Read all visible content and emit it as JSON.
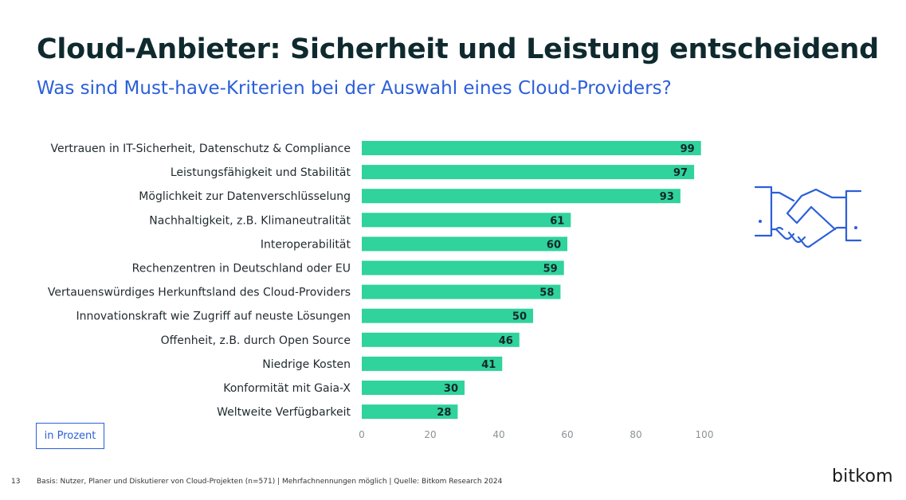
{
  "title": "Cloud-Anbieter: Sicherheit und Leistung entscheidend",
  "subtitle": "Was sind Must-have-Kriterien bei der Auswahl eines Cloud-Providers?",
  "unit_label": "in Prozent",
  "footnote": "Basis: Nutzer, Planer und Diskutierer von Cloud-Projekten (n=571) | Mehrfachnennungen möglich | Quelle: Bitkom Research 2024",
  "page_number": "13",
  "logo_text": "bitkom",
  "icons": {
    "illustration": "handshake-icon"
  },
  "colors": {
    "bar": "#2fd39b",
    "title": "#0f2a2e",
    "accent": "#2b5fd9"
  },
  "chart_data": {
    "type": "bar",
    "orientation": "horizontal",
    "categories": [
      "Vertrauen in IT-Sicherheit, Datenschutz & Compliance",
      "Leistungsfähigkeit und Stabilität",
      "Möglichkeit zur Datenverschlüsselung",
      "Nachhaltigkeit, z.B. Klimaneutralität",
      "Interoperabilität",
      "Rechenzentren in Deutschland oder EU",
      "Vertauenswürdiges Herkunftsland des Cloud-Providers",
      "Innovationskraft wie Zugriff auf neuste Lösungen",
      "Offenheit, z.B. durch Open Source",
      "Niedrige Kosten",
      "Konformität mit Gaia-X",
      "Weltweite Verfügbarkeit"
    ],
    "values": [
      99,
      97,
      93,
      61,
      60,
      59,
      58,
      50,
      46,
      41,
      30,
      28
    ],
    "xlim": [
      0,
      100
    ],
    "xticks": [
      0,
      20,
      40,
      60,
      80,
      100
    ],
    "grid": false,
    "legend": "none"
  }
}
